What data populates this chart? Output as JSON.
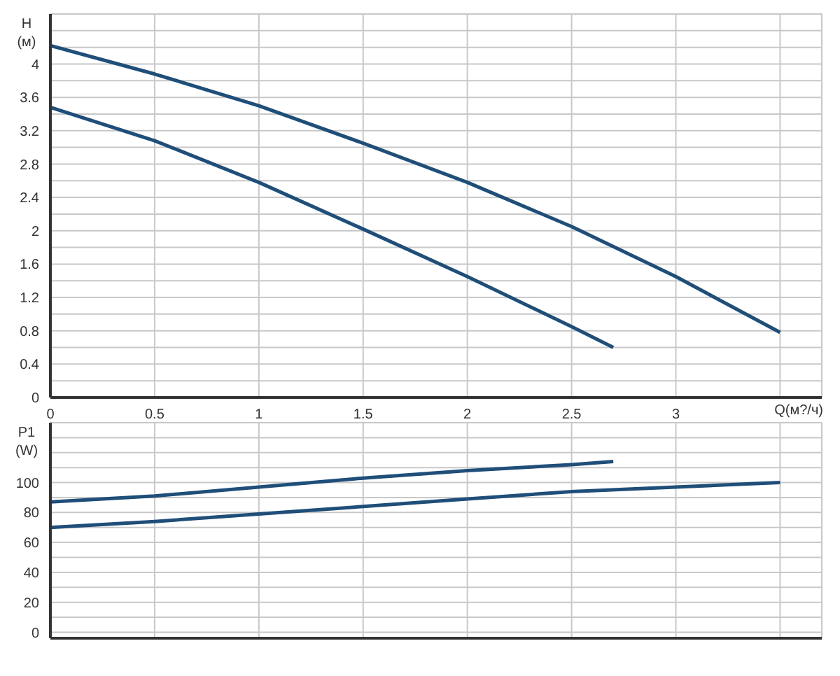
{
  "chart_data": [
    {
      "type": "line",
      "xlabel": "Q(м?/ч)",
      "ylabel": "H (м)",
      "xlim": [
        0,
        3.7
      ],
      "ylim": [
        0,
        4.6
      ],
      "grid": true,
      "marker": "none",
      "line_style": "solid",
      "xticks": [
        0,
        0.5,
        1,
        1.5,
        2,
        2.5,
        3,
        {
          "value": 3.5,
          "label": null
        }
      ],
      "yticks": [
        0,
        {
          "value": 0.2,
          "label": null
        },
        0.4,
        {
          "value": 0.6,
          "label": null
        },
        0.8,
        {
          "value": 1,
          "label": null
        },
        1.2,
        {
          "value": 1.4,
          "label": null
        },
        1.6,
        {
          "value": 1.8,
          "label": null
        },
        2,
        {
          "value": 2.2,
          "label": null
        },
        2.4,
        {
          "value": 2.6,
          "label": null
        },
        2.8,
        {
          "value": 3,
          "label": null
        },
        3.2,
        {
          "value": 3.4,
          "label": null
        },
        3.6,
        {
          "value": 3.8,
          "label": null
        },
        4,
        {
          "value": 4.2,
          "label": null
        },
        {
          "value": 4.4,
          "label": null
        }
      ],
      "series": [
        {
          "color": "#1f4e79",
          "x": [
            0,
            0.5,
            1,
            1.5,
            2,
            2.5,
            3,
            3.5
          ],
          "values": [
            4.22,
            3.88,
            3.5,
            3.05,
            2.58,
            2.05,
            1.45,
            0.78
          ]
        },
        {
          "color": "#1f4e79",
          "x": [
            0,
            0.5,
            1,
            1.5,
            2,
            2.5,
            2.7
          ],
          "values": [
            3.48,
            3.08,
            2.58,
            2.02,
            1.45,
            0.85,
            0.6
          ]
        }
      ]
    },
    {
      "type": "line",
      "ylabel": "P1 (W)",
      "xlim": [
        0,
        3.7
      ],
      "ylim": [
        -4,
        140
      ],
      "grid": true,
      "marker": "none",
      "line_style": "solid",
      "tick_labels": "y",
      "xticks": [
        0,
        0.5,
        1,
        1.5,
        2,
        2.5,
        3,
        3.5
      ],
      "yticks": [
        0,
        {
          "value": 10,
          "label": null
        },
        20,
        {
          "value": 30,
          "label": null
        },
        40,
        {
          "value": 50,
          "label": null
        },
        60,
        {
          "value": 70,
          "label": null
        },
        80,
        {
          "value": 90,
          "label": null
        },
        100,
        {
          "value": 110,
          "label": null
        },
        {
          "value": 120,
          "label": null
        },
        {
          "value": 130,
          "label": null
        }
      ],
      "series": [
        {
          "color": "#1f4e79",
          "x": [
            0,
            0.5,
            1,
            1.5,
            2,
            2.5,
            2.7
          ],
          "values": [
            87,
            91,
            97,
            103,
            108,
            112,
            114
          ]
        },
        {
          "color": "#1f4e79",
          "x": [
            0,
            0.5,
            1,
            1.5,
            2,
            2.5,
            3,
            3.5
          ],
          "values": [
            70,
            74,
            79,
            84,
            89,
            94,
            97,
            100
          ]
        }
      ]
    }
  ]
}
